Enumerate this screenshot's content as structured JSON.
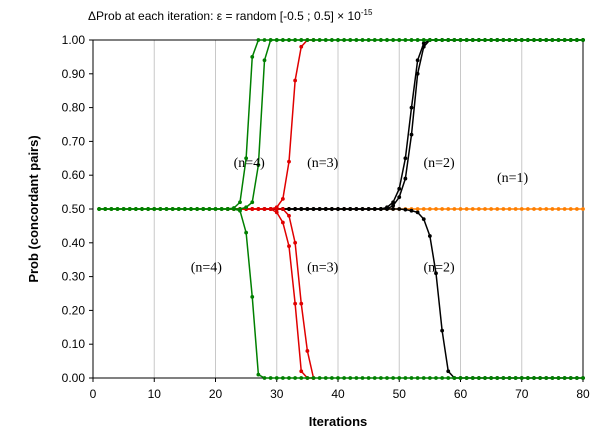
{
  "chart_data": {
    "type": "line",
    "title": "ΔProb at each iteration: ε = random [-0.5 ; 0.5] × 10",
    "title_superscript": "-15",
    "xlabel": "Iterations",
    "ylabel": "Prob (concordant pairs)",
    "xlim": [
      0,
      80
    ],
    "ylim": [
      0,
      1
    ],
    "xticks": [
      0,
      10,
      20,
      30,
      40,
      50,
      60,
      70,
      80
    ],
    "yticks": [
      "0.00",
      "0.10",
      "0.20",
      "0.30",
      "0.40",
      "0.50",
      "0.60",
      "0.70",
      "0.80",
      "0.90",
      "1.00"
    ],
    "grid": "vertical",
    "legend": "none",
    "series": [
      {
        "color": "#008000",
        "x_start": 1,
        "x_end": 80,
        "values": [
          [
            1,
            0.5
          ],
          [
            22,
            0.5
          ],
          [
            23,
            0.503
          ],
          [
            24,
            0.52
          ],
          [
            25,
            0.65
          ],
          [
            26,
            0.95
          ],
          [
            27,
            1.0
          ],
          [
            80,
            1.0
          ]
        ]
      },
      {
        "color": "#008000",
        "x_start": 1,
        "x_end": 80,
        "values": [
          [
            1,
            0.5
          ],
          [
            24,
            0.5
          ],
          [
            25,
            0.505
          ],
          [
            26,
            0.52
          ],
          [
            27,
            0.63
          ],
          [
            28,
            0.94
          ],
          [
            29,
            1.0
          ],
          [
            80,
            1.0
          ]
        ]
      },
      {
        "color": "#008000",
        "x_start": 1,
        "x_end": 80,
        "values": [
          [
            1,
            0.5
          ],
          [
            23,
            0.5
          ],
          [
            24,
            0.495
          ],
          [
            25,
            0.43
          ],
          [
            26,
            0.24
          ],
          [
            27,
            0.01
          ],
          [
            28,
            0.0
          ],
          [
            80,
            0.0
          ]
        ]
      },
      {
        "color": "#e00000",
        "x_start": 22,
        "x_end": 36,
        "values": [
          [
            22,
            0.5
          ],
          [
            29,
            0.5
          ],
          [
            30,
            0.505
          ],
          [
            31,
            0.53
          ],
          [
            32,
            0.64
          ],
          [
            33,
            0.88
          ],
          [
            34,
            0.98
          ],
          [
            35,
            1.0
          ]
        ]
      },
      {
        "color": "#e00000",
        "x_start": 22,
        "x_end": 36,
        "values": [
          [
            22,
            0.5
          ],
          [
            29,
            0.5
          ],
          [
            30,
            0.49
          ],
          [
            31,
            0.46
          ],
          [
            32,
            0.39
          ],
          [
            33,
            0.22
          ],
          [
            34,
            0.02
          ],
          [
            35,
            0.0
          ]
        ]
      },
      {
        "color": "#e00000",
        "x_start": 22,
        "x_end": 36,
        "values": [
          [
            22,
            0.5
          ],
          [
            31,
            0.5
          ],
          [
            32,
            0.48
          ],
          [
            33,
            0.4
          ],
          [
            34,
            0.22
          ],
          [
            35,
            0.08
          ],
          [
            36,
            0.0
          ]
        ]
      },
      {
        "color": "#000000",
        "x_start": 28,
        "x_end": 80,
        "values": [
          [
            28,
            0.5
          ],
          [
            47,
            0.5
          ],
          [
            48,
            0.505
          ],
          [
            49,
            0.52
          ],
          [
            50,
            0.56
          ],
          [
            51,
            0.65
          ],
          [
            52,
            0.8
          ],
          [
            53,
            0.94
          ],
          [
            54,
            0.99
          ],
          [
            55,
            1.0
          ],
          [
            80,
            1.0
          ]
        ]
      },
      {
        "color": "#000000",
        "x_start": 28,
        "x_end": 80,
        "values": [
          [
            28,
            0.5
          ],
          [
            48,
            0.5
          ],
          [
            49,
            0.51
          ],
          [
            50,
            0.535
          ],
          [
            51,
            0.59
          ],
          [
            52,
            0.72
          ],
          [
            53,
            0.9
          ],
          [
            54,
            0.98
          ],
          [
            55,
            1.0
          ],
          [
            80,
            1.0
          ]
        ]
      },
      {
        "color": "#000000",
        "x_start": 28,
        "x_end": 80,
        "values": [
          [
            28,
            0.5
          ],
          [
            50,
            0.5
          ],
          [
            51,
            0.498
          ],
          [
            52,
            0.495
          ],
          [
            53,
            0.49
          ],
          [
            54,
            0.47
          ],
          [
            55,
            0.42
          ],
          [
            56,
            0.31
          ],
          [
            57,
            0.14
          ],
          [
            58,
            0.02
          ],
          [
            59,
            0.0
          ],
          [
            80,
            0.0
          ]
        ]
      },
      {
        "color": "#ff7f00",
        "x_start": 1,
        "x_end": 80,
        "values": [
          [
            1,
            0.5
          ],
          [
            80,
            0.5
          ]
        ]
      }
    ],
    "annotations": [
      {
        "text": "(n=4)",
        "x": 25.5,
        "y": 0.625
      },
      {
        "text": "(n=4)",
        "x": 18.5,
        "y": 0.315
      },
      {
        "text": "(n=3)",
        "x": 37.5,
        "y": 0.625
      },
      {
        "text": "(n=3)",
        "x": 37.5,
        "y": 0.315
      },
      {
        "text": "(n=2)",
        "x": 56.5,
        "y": 0.625
      },
      {
        "text": "(n=2)",
        "x": 56.5,
        "y": 0.315
      },
      {
        "text": "(n=1)",
        "x": 68.5,
        "y": 0.58
      }
    ]
  }
}
